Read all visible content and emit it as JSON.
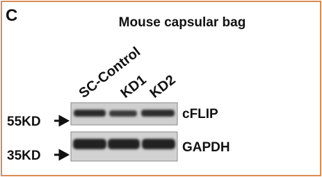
{
  "panel_label": "C",
  "title": "Mouse capsular bag",
  "lanes": [
    "SC-Control",
    "KD1",
    "KD2"
  ],
  "markers": [
    "55KD",
    "35KD"
  ],
  "blots": [
    "cFLIP",
    "GAPDH"
  ]
}
